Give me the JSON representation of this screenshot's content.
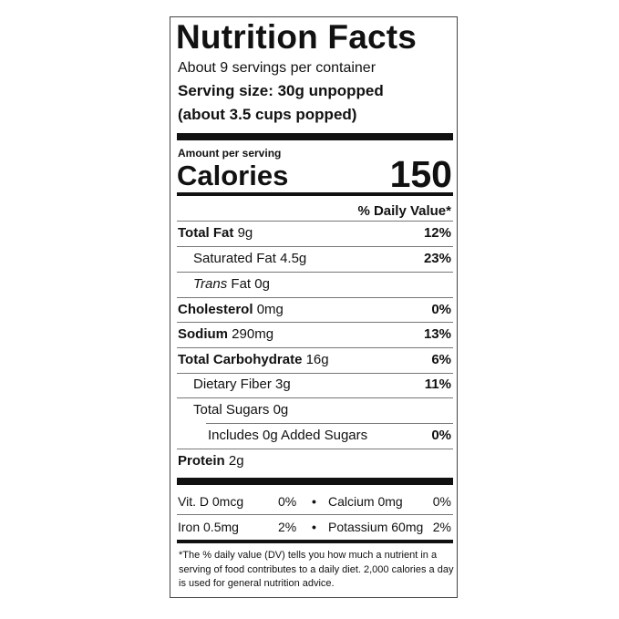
{
  "title": "Nutrition Facts",
  "servings": "About 9 servings per container",
  "serving_size": "Serving size: 30g unpopped",
  "serving_note": "(about 3.5 cups popped)",
  "amount_per_serving": "Amount per serving",
  "calories_label": "Calories",
  "calories": 150,
  "daily_value_header": "% Daily Value*",
  "nutrients": [
    {
      "name": "Total Fat",
      "amount": "9g",
      "dv": "12%"
    },
    {
      "name": "Saturated Fat",
      "amount": "4.5g",
      "dv": "23%"
    },
    {
      "name": "Trans",
      "name_rest": "Fat",
      "amount": "0g"
    },
    {
      "name": "Cholesterol",
      "amount": "0mg",
      "dv": "0%"
    },
    {
      "name": "Sodium",
      "amount": "290mg",
      "dv": "13%"
    },
    {
      "name": "Total Carbohydrate",
      "amount": "16g",
      "dv": "6%"
    },
    {
      "name": "Dietary Fiber",
      "amount": "3g",
      "dv": "11%"
    },
    {
      "name": "Total Sugars",
      "amount": "0g"
    },
    {
      "name": "Includes 0g Added Sugars",
      "dv": "0%"
    },
    {
      "name": "Protein",
      "amount": "2g"
    }
  ],
  "bullet": "•",
  "vitamins": [
    [
      {
        "name": "Vit. D 0mcg",
        "dv": "0%"
      },
      {
        "name": "Calcium 0mg",
        "dv": "0%"
      }
    ],
    [
      {
        "name": "Iron 0.5mg",
        "dv": "2%"
      },
      {
        "name": "Potassium 60mg",
        "dv": "2%"
      }
    ]
  ],
  "footnote": "*The % daily value (DV) tells you how much a nutrient in a serving of food contributes to a daily diet. 2,000 calories a day is used for general nutrition advice."
}
